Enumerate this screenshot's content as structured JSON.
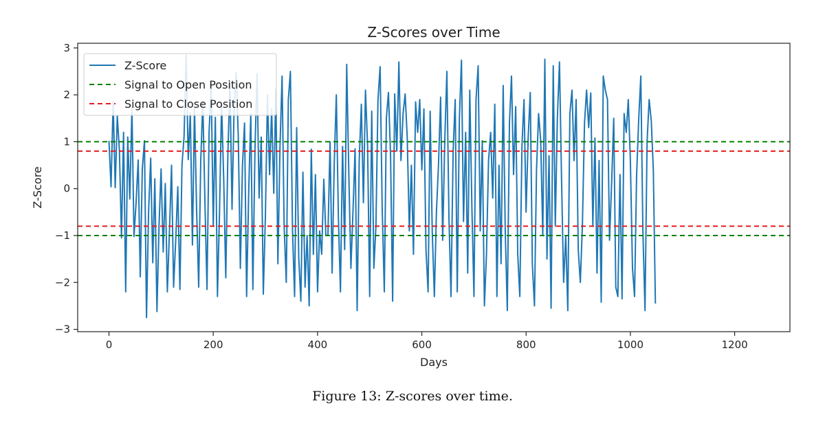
{
  "caption": "Figure 13: Z-scores over time.",
  "chart_data": {
    "type": "line",
    "title": "Z-Scores over Time",
    "xlabel": "Days",
    "ylabel": "Z-Score",
    "xlim": [
      -60,
      1306
    ],
    "ylim": [
      -3.05,
      3.1
    ],
    "xticks": [
      0,
      200,
      400,
      600,
      800,
      1000,
      1200
    ],
    "xtick_labels": [
      "0",
      "200",
      "400",
      "600",
      "800",
      "1000",
      "1200"
    ],
    "yticks": [
      -3,
      -2,
      -1,
      0,
      1,
      2,
      3
    ],
    "ytick_labels": [
      "−3",
      "−2",
      "−1",
      "0",
      "1",
      "2",
      "3"
    ],
    "grid": false,
    "legend_position": "upper-left",
    "colors": {
      "zscore": "#1f77b4",
      "open": "#008000",
      "close": "#e41a1c"
    },
    "series": [
      {
        "name": "Z-Score",
        "style": "solid",
        "x_start": 0,
        "x_step": 4,
        "values": [
          1.02,
          0.04,
          1.85,
          0.02,
          1.55,
          0.81,
          -1.05,
          1.2,
          -2.2,
          1.1,
          -0.22,
          1.72,
          -1.02,
          -0.31,
          0.61,
          -1.88,
          0.42,
          1.02,
          -2.75,
          -0.5,
          0.65,
          -1.58,
          0.21,
          -2.62,
          -0.8,
          0.42,
          -1.35,
          0.11,
          -2.2,
          -0.9,
          0.5,
          -2.1,
          -1.1,
          0.04,
          -2.15,
          0.51,
          1.1,
          2.85,
          0.62,
          1.61,
          -1.2,
          1.74,
          -0.41,
          -2.1,
          0.6,
          1.85,
          -0.3,
          -2.15,
          1.2,
          2.2,
          -0.8,
          1.52,
          -2.3,
          -0.5,
          1.82,
          0.2,
          -1.9,
          0.71,
          2.26,
          -0.44,
          1.72,
          2.48,
          1.1,
          -1.7,
          0.5,
          1.4,
          -2.3,
          -0.05,
          1.6,
          -2.15,
          0.85,
          2.45,
          -0.2,
          1.1,
          -2.25,
          -0.6,
          2.0,
          0.3,
          1.7,
          -0.1,
          2.12,
          -1.6,
          0.9,
          2.4,
          -0.8,
          -2.0,
          1.9,
          2.5,
          -0.9,
          -2.3,
          1.3,
          -1.5,
          -2.4,
          0.35,
          -2.1,
          -1.0,
          -2.5,
          0.84,
          -1.4,
          0.3,
          -2.2,
          -0.9,
          -1.4,
          0.2,
          -1.0,
          -1.0,
          1.0,
          -1.8,
          0.5,
          2.0,
          -0.6,
          -2.2,
          0.9,
          -1.3,
          2.65,
          0.3,
          -1.7,
          -0.5,
          0.85,
          -2.6,
          0.6,
          1.8,
          -0.3,
          2.1,
          0.9,
          -2.3,
          1.65,
          -1.7,
          -0.8,
          1.9,
          2.6,
          -0.4,
          -2.2,
          1.5,
          2.05,
          0.7,
          -2.4,
          2.02,
          0.8,
          2.7,
          0.6,
          1.6,
          2.02,
          1.1,
          -0.9,
          0.5,
          -1.4,
          1.85,
          1.2,
          1.9,
          0.4,
          1.7,
          -1.3,
          -2.2,
          1.65,
          -0.9,
          -2.3,
          -0.5,
          0.5,
          1.95,
          -1.1,
          1.0,
          2.5,
          -0.6,
          -2.3,
          0.8,
          1.9,
          -2.2,
          1.5,
          2.74,
          -0.7,
          1.2,
          -1.8,
          2.1,
          -0.4,
          -2.3,
          1.9,
          2.62,
          -0.9,
          1.02,
          -2.5,
          -1.4,
          0.6,
          1.2,
          -0.2,
          1.8,
          -2.3,
          0.5,
          -1.6,
          2.2,
          -0.9,
          -2.6,
          1.4,
          2.4,
          0.3,
          1.75,
          -1.4,
          -2.3,
          0.9,
          1.9,
          -0.5,
          1.1,
          2.05,
          -1.6,
          -2.5,
          0.4,
          1.6,
          1.02,
          -1.0,
          2.76,
          -1.5,
          0.7,
          -2.55,
          2.62,
          -0.8,
          1.5,
          2.7,
          0.2,
          -2.0,
          -1.0,
          -2.6,
          1.6,
          2.1,
          0.6,
          1.9,
          -1.3,
          -2.0,
          -0.8,
          1.4,
          2.1,
          1.3,
          2.04,
          -0.8,
          1.08,
          -1.8,
          0.6,
          -2.42,
          2.4,
          2.1,
          1.9,
          -1.1,
          0.1,
          1.5,
          -2.1,
          -2.3,
          0.3,
          -2.35,
          1.6,
          1.2,
          1.9,
          0.6,
          -1.7,
          -2.3,
          0.3,
          1.5,
          2.4,
          -0.9,
          -2.6,
          1.0,
          1.9,
          1.45,
          0.4,
          -2.45
        ]
      },
      {
        "name": "Signal to Open Position",
        "style": "dashed",
        "levels": [
          1.0,
          -1.0
        ]
      },
      {
        "name": "Signal to Close Position",
        "style": "dashed",
        "levels": [
          0.8,
          -0.8
        ]
      }
    ]
  }
}
